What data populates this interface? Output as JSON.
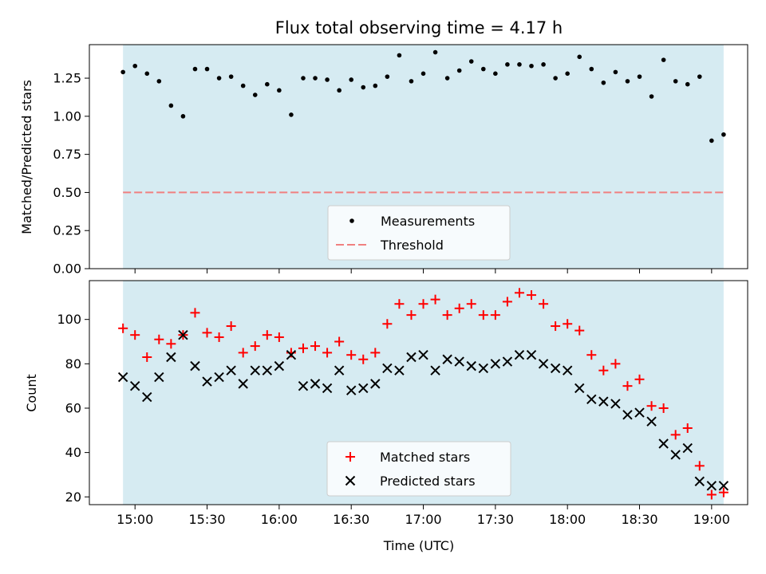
{
  "title": "Flux total observing time = 4.17 h",
  "colors": {
    "observing_band": "#add8e6",
    "threshold": "#f08080",
    "measurement": "#000000",
    "matched": "#ff0000",
    "predicted": "#000000"
  },
  "chart_data": [
    {
      "type": "scatter",
      "ylabel": "Matched/Predicted stars",
      "ylim": [
        0,
        1.47
      ],
      "yticks": [
        "0.00",
        "0.25",
        "0.50",
        "0.75",
        "1.00",
        "1.25"
      ],
      "shaded_span": [
        "14:55",
        "19:05"
      ],
      "legend_position": "lower center",
      "threshold": {
        "name": "Threshold",
        "value": 0.5,
        "style": "dashed"
      },
      "series": [
        {
          "name": "Measurements",
          "marker": "dot",
          "points": [
            [
              "14:55",
              1.29
            ],
            [
              "15:00",
              1.33
            ],
            [
              "15:05",
              1.28
            ],
            [
              "15:10",
              1.23
            ],
            [
              "15:15",
              1.07
            ],
            [
              "15:20",
              1.0
            ],
            [
              "15:25",
              1.31
            ],
            [
              "15:30",
              1.31
            ],
            [
              "15:35",
              1.25
            ],
            [
              "15:40",
              1.26
            ],
            [
              "15:45",
              1.2
            ],
            [
              "15:50",
              1.14
            ],
            [
              "15:55",
              1.21
            ],
            [
              "16:00",
              1.17
            ],
            [
              "16:05",
              1.01
            ],
            [
              "16:10",
              1.25
            ],
            [
              "16:15",
              1.25
            ],
            [
              "16:20",
              1.24
            ],
            [
              "16:25",
              1.17
            ],
            [
              "16:30",
              1.24
            ],
            [
              "16:35",
              1.19
            ],
            [
              "16:40",
              1.2
            ],
            [
              "16:45",
              1.26
            ],
            [
              "16:50",
              1.4
            ],
            [
              "16:55",
              1.23
            ],
            [
              "17:00",
              1.28
            ],
            [
              "17:05",
              1.42
            ],
            [
              "17:10",
              1.25
            ],
            [
              "17:15",
              1.3
            ],
            [
              "17:20",
              1.36
            ],
            [
              "17:25",
              1.31
            ],
            [
              "17:30",
              1.28
            ],
            [
              "17:35",
              1.34
            ],
            [
              "17:40",
              1.34
            ],
            [
              "17:45",
              1.33
            ],
            [
              "17:50",
              1.34
            ],
            [
              "17:55",
              1.25
            ],
            [
              "18:00",
              1.28
            ],
            [
              "18:05",
              1.39
            ],
            [
              "18:10",
              1.31
            ],
            [
              "18:15",
              1.22
            ],
            [
              "18:20",
              1.29
            ],
            [
              "18:25",
              1.23
            ],
            [
              "18:30",
              1.26
            ],
            [
              "18:35",
              1.13
            ],
            [
              "18:40",
              1.37
            ],
            [
              "18:45",
              1.23
            ],
            [
              "18:50",
              1.21
            ],
            [
              "18:55",
              1.26
            ],
            [
              "19:00",
              0.84
            ],
            [
              "19:05",
              0.88
            ]
          ]
        }
      ]
    },
    {
      "type": "scatter",
      "xlabel": "Time (UTC)",
      "ylabel": "Count",
      "ylim": [
        16.5,
        117.5
      ],
      "yticks": [
        "20",
        "40",
        "60",
        "80",
        "100"
      ],
      "xticks": [
        "15:00",
        "15:30",
        "16:00",
        "16:30",
        "17:00",
        "17:30",
        "18:00",
        "18:30",
        "19:00"
      ],
      "xlim": [
        "14:41",
        "19:15"
      ],
      "shaded_span": [
        "14:55",
        "19:05"
      ],
      "legend_position": "lower center",
      "series": [
        {
          "name": "Matched stars",
          "marker": "plus",
          "points": [
            [
              "14:55",
              96
            ],
            [
              "15:00",
              93
            ],
            [
              "15:05",
              83
            ],
            [
              "15:10",
              91
            ],
            [
              "15:15",
              89
            ],
            [
              "15:20",
              93
            ],
            [
              "15:25",
              103
            ],
            [
              "15:30",
              94
            ],
            [
              "15:35",
              92
            ],
            [
              "15:40",
              97
            ],
            [
              "15:45",
              85
            ],
            [
              "15:50",
              88
            ],
            [
              "15:55",
              93
            ],
            [
              "16:00",
              92
            ],
            [
              "16:05",
              85
            ],
            [
              "16:10",
              87
            ],
            [
              "16:15",
              88
            ],
            [
              "16:20",
              85
            ],
            [
              "16:25",
              90
            ],
            [
              "16:30",
              84
            ],
            [
              "16:35",
              82
            ],
            [
              "16:40",
              85
            ],
            [
              "16:45",
              98
            ],
            [
              "16:50",
              107
            ],
            [
              "16:55",
              102
            ],
            [
              "17:00",
              107
            ],
            [
              "17:05",
              109
            ],
            [
              "17:10",
              102
            ],
            [
              "17:15",
              105
            ],
            [
              "17:20",
              107
            ],
            [
              "17:25",
              102
            ],
            [
              "17:30",
              102
            ],
            [
              "17:35",
              108
            ],
            [
              "17:40",
              112
            ],
            [
              "17:45",
              111
            ],
            [
              "17:50",
              107
            ],
            [
              "17:55",
              97
            ],
            [
              "18:00",
              98
            ],
            [
              "18:05",
              95
            ],
            [
              "18:10",
              84
            ],
            [
              "18:15",
              77
            ],
            [
              "18:20",
              80
            ],
            [
              "18:25",
              70
            ],
            [
              "18:30",
              73
            ],
            [
              "18:35",
              61
            ],
            [
              "18:40",
              60
            ],
            [
              "18:45",
              48
            ],
            [
              "18:50",
              51
            ],
            [
              "18:55",
              34
            ],
            [
              "19:00",
              21
            ],
            [
              "19:05",
              22
            ]
          ]
        },
        {
          "name": "Predicted stars",
          "marker": "x",
          "points": [
            [
              "14:55",
              74
            ],
            [
              "15:00",
              70
            ],
            [
              "15:05",
              65
            ],
            [
              "15:10",
              74
            ],
            [
              "15:15",
              83
            ],
            [
              "15:20",
              93
            ],
            [
              "15:25",
              79
            ],
            [
              "15:30",
              72
            ],
            [
              "15:35",
              74
            ],
            [
              "15:40",
              77
            ],
            [
              "15:45",
              71
            ],
            [
              "15:50",
              77
            ],
            [
              "15:55",
              77
            ],
            [
              "16:00",
              79
            ],
            [
              "16:05",
              84
            ],
            [
              "16:10",
              70
            ],
            [
              "16:15",
              71
            ],
            [
              "16:20",
              69
            ],
            [
              "16:25",
              77
            ],
            [
              "16:30",
              68
            ],
            [
              "16:35",
              69
            ],
            [
              "16:40",
              71
            ],
            [
              "16:45",
              78
            ],
            [
              "16:50",
              77
            ],
            [
              "16:55",
              83
            ],
            [
              "17:00",
              84
            ],
            [
              "17:05",
              77
            ],
            [
              "17:10",
              82
            ],
            [
              "17:15",
              81
            ],
            [
              "17:20",
              79
            ],
            [
              "17:25",
              78
            ],
            [
              "17:30",
              80
            ],
            [
              "17:35",
              81
            ],
            [
              "17:40",
              84
            ],
            [
              "17:45",
              84
            ],
            [
              "17:50",
              80
            ],
            [
              "17:55",
              78
            ],
            [
              "18:00",
              77
            ],
            [
              "18:05",
              69
            ],
            [
              "18:10",
              64
            ],
            [
              "18:15",
              63
            ],
            [
              "18:20",
              62
            ],
            [
              "18:25",
              57
            ],
            [
              "18:30",
              58
            ],
            [
              "18:35",
              54
            ],
            [
              "18:40",
              44
            ],
            [
              "18:45",
              39
            ],
            [
              "18:50",
              42
            ],
            [
              "18:55",
              27
            ],
            [
              "19:00",
              25
            ],
            [
              "19:05",
              25
            ]
          ]
        }
      ]
    }
  ]
}
